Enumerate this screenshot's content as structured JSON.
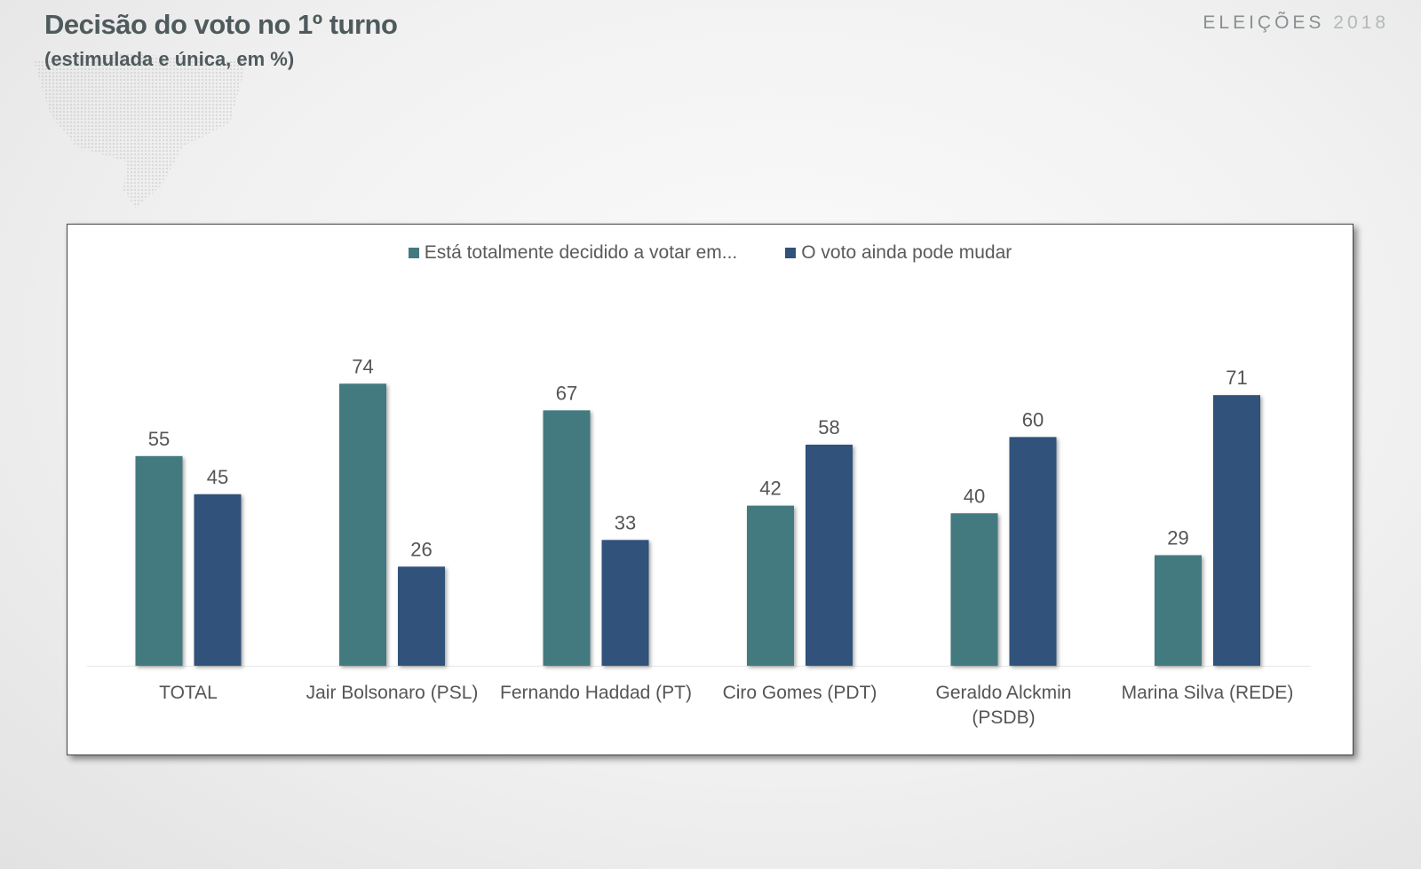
{
  "header": {
    "title": "Decisão do voto no 1º turno",
    "subtitle": "(estimulada e única, em %)",
    "brand_main": "ELEIÇÕES",
    "brand_year": "2018"
  },
  "colors": {
    "decided": "#437a80",
    "may_change": "#30527b"
  },
  "chart_data": {
    "type": "bar",
    "categories": [
      [
        "TOTAL"
      ],
      [
        "Jair Bolsonaro (PSL)"
      ],
      [
        "Fernando Haddad (PT)"
      ],
      [
        "Ciro Gomes (PDT)"
      ],
      [
        "Geraldo Alckmin",
        "(PSDB)"
      ],
      [
        "Marina Silva (REDE)"
      ]
    ],
    "series": [
      {
        "name": "Está totalmente decidido a votar em...",
        "values": [
          55,
          74,
          67,
          42,
          40,
          29
        ]
      },
      {
        "name": "O voto ainda pode mudar",
        "values": [
          45,
          26,
          33,
          58,
          60,
          71
        ]
      }
    ],
    "ylim": [
      0,
      80
    ],
    "legend_position": "top-center",
    "grid": false
  }
}
